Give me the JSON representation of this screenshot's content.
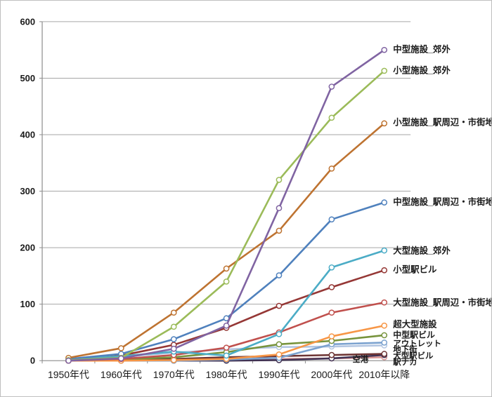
{
  "chart_data": {
    "type": "line",
    "title": "",
    "xlabel": "",
    "ylabel": "",
    "categories": [
      "1950年代",
      "1960年代",
      "1970年代",
      "1980年代",
      "1990年代",
      "2000年代",
      "2010年以降"
    ],
    "ylim": [
      0,
      600
    ],
    "yticks": [
      0,
      100,
      200,
      300,
      400,
      500,
      600
    ],
    "grid": "horizontal",
    "marker": "open-circle",
    "legend_position": "labels-at-line-ends",
    "colors": {
      "axis": "#8C8C8C",
      "grid": "#A6A6A6",
      "background": "#FFFFFF",
      "marker_fill": "#FFFFFF",
      "text": "#1A1A1A",
      "border": "#BFBFBF"
    },
    "series": [
      {
        "name": "中型施設_郊外",
        "color": "#8064A2",
        "values": [
          0,
          4,
          21,
          62,
          270,
          485,
          550
        ]
      },
      {
        "name": "小型施設_郊外",
        "color": "#9BBB59",
        "values": [
          1,
          5,
          60,
          140,
          320,
          430,
          513
        ]
      },
      {
        "name": "小型施設_駅周辺・市街地",
        "color": "#BE7331",
        "values": [
          5,
          22,
          85,
          163,
          230,
          340,
          420
        ]
      },
      {
        "name": "中型施設_駅周辺・市街地",
        "color": "#4F81BD",
        "values": [
          3,
          12,
          38,
          75,
          151,
          250,
          280
        ]
      },
      {
        "name": "大型施設_郊外",
        "color": "#4BACC6",
        "values": [
          2,
          8,
          16,
          9,
          47,
          165,
          195
        ]
      },
      {
        "name": "小型駅ビル",
        "color": "#953735",
        "values": [
          0,
          9,
          28,
          58,
          97,
          130,
          160
        ]
      },
      {
        "name": "大型施設_駅周辺・市街地",
        "color": "#C0504D",
        "values": [
          0,
          3,
          10,
          23,
          50,
          85,
          103
        ]
      },
      {
        "name": "超大型施設",
        "color": "#F79646",
        "values": [
          0,
          0,
          1,
          3,
          11,
          43,
          62
        ]
      },
      {
        "name": "中型駅ビル",
        "color": "#77933C",
        "values": [
          0,
          2,
          6,
          15,
          29,
          35,
          45
        ]
      },
      {
        "name": "アウトレット",
        "color": "#7BA2CF",
        "values": [
          0,
          0,
          0,
          2,
          5,
          29,
          32
        ]
      },
      {
        "name": "地下街",
        "color": "#B3C6E2",
        "values": [
          1,
          7,
          14,
          20,
          24,
          25,
          27
        ]
      },
      {
        "name": "大型駅ビル",
        "color": "#6E3433",
        "values": [
          0,
          1,
          3,
          6,
          8,
          10,
          12
        ]
      },
      {
        "name": "駅ナカ",
        "color": "#413253",
        "values": [
          0,
          0,
          0,
          0,
          1,
          4,
          10
        ]
      },
      {
        "name": "空港",
        "color": "#D99694",
        "values": [
          0,
          0,
          1,
          2,
          3,
          4,
          6
        ]
      }
    ]
  }
}
